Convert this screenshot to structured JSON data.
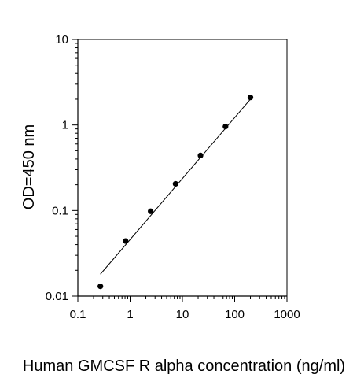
{
  "chart_data": {
    "type": "scatter",
    "title": "",
    "xlabel": "Human GMCSF R alpha concentration (ng/ml)",
    "ylabel": "OD=450 nm",
    "x_scale": "log",
    "y_scale": "log",
    "xlim": [
      0.1,
      1000
    ],
    "ylim": [
      0.01,
      10
    ],
    "x_ticks": [
      "0.1",
      "1",
      "10",
      "100",
      "1000"
    ],
    "y_ticks": [
      "0.01",
      "0.1",
      "1",
      "10"
    ],
    "grid": false,
    "legend": "none",
    "colors": {
      "points": "#000000",
      "fit_line": "#000000",
      "axes": "#000000"
    },
    "series": [
      {
        "x": [
          0.27,
          0.82,
          2.47,
          7.41,
          22.2,
          66.7,
          200
        ],
        "y": [
          0.013,
          0.044,
          0.098,
          0.205,
          0.44,
          0.96,
          2.1
        ]
      }
    ],
    "fit_line": {
      "x": [
        0.27,
        200
      ],
      "y": [
        0.018,
        2.0
      ]
    }
  }
}
